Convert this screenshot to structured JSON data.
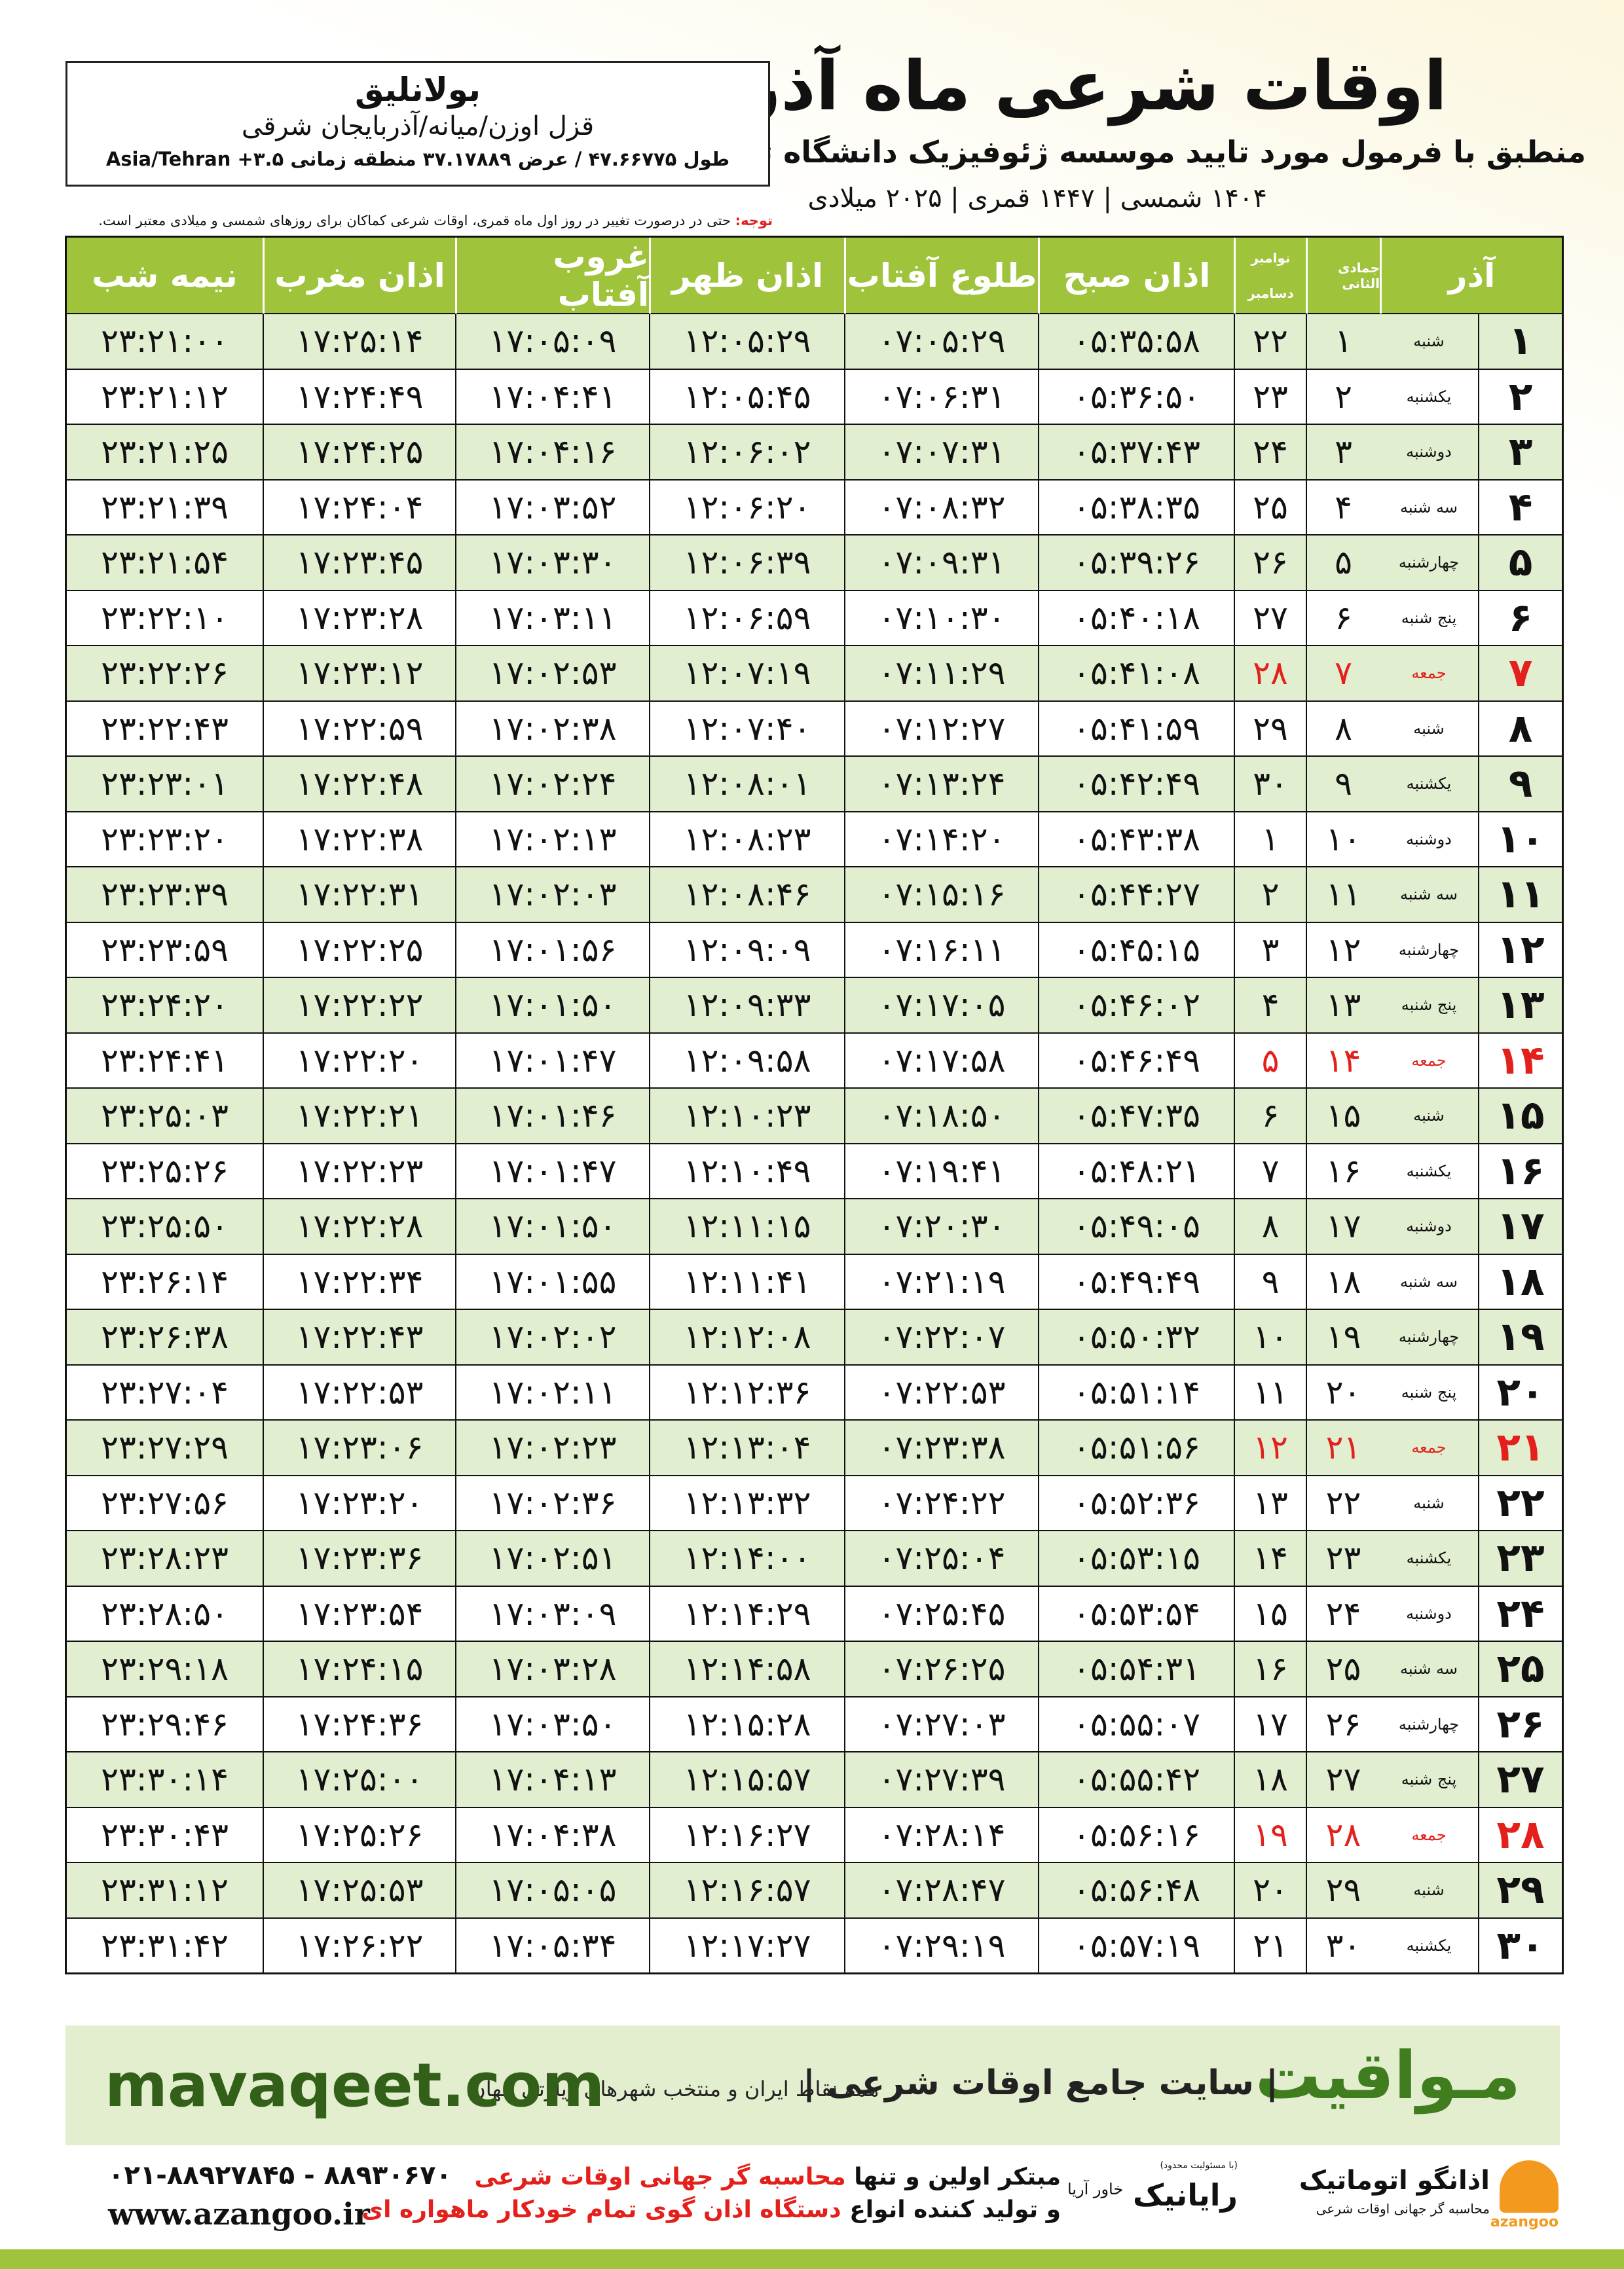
{
  "header": {
    "title": "اوقات شرعی ماه آذر",
    "subtitle": "منطبق با فرمول مورد تایید موسسه ژئوفیزیک دانشگاه تهران",
    "dates": "۱۴۰۴ شمسی | ۱۴۴۷ قمری | ۲۰۲۵ میلادی"
  },
  "location": {
    "city": "بولانلیق",
    "region": "قزل اوزن/میانه/آذربایجان شرقی",
    "coords": "طول ۴۷.۶۶۷۷۵ / عرض ۳۷.۱۷۸۸۹ منطقه زمانی ۳.۵+ Asia/Tehran"
  },
  "note": {
    "label": "توجه:",
    "text": "حتی در درصورت تغییر در روز اول ماه قمری، اوقات شرعی کماکان برای روزهای شمسی و میلادی معتبر است."
  },
  "table": {
    "columns": [
      "آذر",
      "جمادی الثانی",
      "نوامبر",
      "دسامبر",
      "اذان صبح",
      "طلوع آفتاب",
      "اذان ظهر",
      "غروب آفتاب",
      "اذان مغرب",
      "نیمه شب"
    ],
    "rows": [
      {
        "color": "#111111",
        "cells": [
          "۱",
          "شنبه",
          "۱",
          "۲۲",
          "۰۵:۳۵:۵۸",
          "۰۷:۰۵:۲۹",
          "۱۲:۰۵:۲۹",
          "۱۷:۰۵:۰۹",
          "۱۷:۲۵:۱۴",
          "۲۳:۲۱:۰۰"
        ]
      },
      {
        "color": "#111111",
        "cells": [
          "۲",
          "یکشنبه",
          "۲",
          "۲۳",
          "۰۵:۳۶:۵۰",
          "۰۷:۰۶:۳۱",
          "۱۲:۰۵:۴۵",
          "۱۷:۰۴:۴۱",
          "۱۷:۲۴:۴۹",
          "۲۳:۲۱:۱۲"
        ]
      },
      {
        "color": "#111111",
        "cells": [
          "۳",
          "دوشنبه",
          "۳",
          "۲۴",
          "۰۵:۳۷:۴۳",
          "۰۷:۰۷:۳۱",
          "۱۲:۰۶:۰۲",
          "۱۷:۰۴:۱۶",
          "۱۷:۲۴:۲۵",
          "۲۳:۲۱:۲۵"
        ]
      },
      {
        "color": "#111111",
        "cells": [
          "۴",
          "سه شنبه",
          "۴",
          "۲۵",
          "۰۵:۳۸:۳۵",
          "۰۷:۰۸:۳۲",
          "۱۲:۰۶:۲۰",
          "۱۷:۰۳:۵۲",
          "۱۷:۲۴:۰۴",
          "۲۳:۲۱:۳۹"
        ]
      },
      {
        "color": "#111111",
        "cells": [
          "۵",
          "چهارشنبه",
          "۵",
          "۲۶",
          "۰۵:۳۹:۲۶",
          "۰۷:۰۹:۳۱",
          "۱۲:۰۶:۳۹",
          "۱۷:۰۳:۳۰",
          "۱۷:۲۳:۴۵",
          "۲۳:۲۱:۵۴"
        ]
      },
      {
        "color": "#111111",
        "cells": [
          "۶",
          "پنج شنبه",
          "۶",
          "۲۷",
          "۰۵:۴۰:۱۸",
          "۰۷:۱۰:۳۰",
          "۱۲:۰۶:۵۹",
          "۱۷:۰۳:۱۱",
          "۱۷:۲۳:۲۸",
          "۲۳:۲۲:۱۰"
        ]
      },
      {
        "color": "#e3201b",
        "cells": [
          "۷",
          "جمعه",
          "۷",
          "۲۸",
          "۰۵:۴۱:۰۸",
          "۰۷:۱۱:۲۹",
          "۱۲:۰۷:۱۹",
          "۱۷:۰۲:۵۳",
          "۱۷:۲۳:۱۲",
          "۲۳:۲۲:۲۶"
        ]
      },
      {
        "color": "#111111",
        "cells": [
          "۸",
          "شنبه",
          "۸",
          "۲۹",
          "۰۵:۴۱:۵۹",
          "۰۷:۱۲:۲۷",
          "۱۲:۰۷:۴۰",
          "۱۷:۰۲:۳۸",
          "۱۷:۲۲:۵۹",
          "۲۳:۲۲:۴۳"
        ]
      },
      {
        "color": "#111111",
        "cells": [
          "۹",
          "یکشنبه",
          "۹",
          "۳۰",
          "۰۵:۴۲:۴۹",
          "۰۷:۱۳:۲۴",
          "۱۲:۰۸:۰۱",
          "۱۷:۰۲:۲۴",
          "۱۷:۲۲:۴۸",
          "۲۳:۲۳:۰۱"
        ]
      },
      {
        "color": "#111111",
        "cells": [
          "۱۰",
          "دوشنبه",
          "۱۰",
          "۱",
          "۰۵:۴۳:۳۸",
          "۰۷:۱۴:۲۰",
          "۱۲:۰۸:۲۳",
          "۱۷:۰۲:۱۳",
          "۱۷:۲۲:۳۸",
          "۲۳:۲۳:۲۰"
        ]
      },
      {
        "color": "#111111",
        "cells": [
          "۱۱",
          "سه شنبه",
          "۱۱",
          "۲",
          "۰۵:۴۴:۲۷",
          "۰۷:۱۵:۱۶",
          "۱۲:۰۸:۴۶",
          "۱۷:۰۲:۰۳",
          "۱۷:۲۲:۳۱",
          "۲۳:۲۳:۳۹"
        ]
      },
      {
        "color": "#111111",
        "cells": [
          "۱۲",
          "چهارشنبه",
          "۱۲",
          "۳",
          "۰۵:۴۵:۱۵",
          "۰۷:۱۶:۱۱",
          "۱۲:۰۹:۰۹",
          "۱۷:۰۱:۵۶",
          "۱۷:۲۲:۲۵",
          "۲۳:۲۳:۵۹"
        ]
      },
      {
        "color": "#111111",
        "cells": [
          "۱۳",
          "پنج شنبه",
          "۱۳",
          "۴",
          "۰۵:۴۶:۰۲",
          "۰۷:۱۷:۰۵",
          "۱۲:۰۹:۳۳",
          "۱۷:۰۱:۵۰",
          "۱۷:۲۲:۲۲",
          "۲۳:۲۴:۲۰"
        ]
      },
      {
        "color": "#e3201b",
        "cells": [
          "۱۴",
          "جمعه",
          "۱۴",
          "۵",
          "۰۵:۴۶:۴۹",
          "۰۷:۱۷:۵۸",
          "۱۲:۰۹:۵۸",
          "۱۷:۰۱:۴۷",
          "۱۷:۲۲:۲۰",
          "۲۳:۲۴:۴۱"
        ]
      },
      {
        "color": "#111111",
        "cells": [
          "۱۵",
          "شنبه",
          "۱۵",
          "۶",
          "۰۵:۴۷:۳۵",
          "۰۷:۱۸:۵۰",
          "۱۲:۱۰:۲۳",
          "۱۷:۰۱:۴۶",
          "۱۷:۲۲:۲۱",
          "۲۳:۲۵:۰۳"
        ]
      },
      {
        "color": "#111111",
        "cells": [
          "۱۶",
          "یکشنبه",
          "۱۶",
          "۷",
          "۰۵:۴۸:۲۱",
          "۰۷:۱۹:۴۱",
          "۱۲:۱۰:۴۹",
          "۱۷:۰۱:۴۷",
          "۱۷:۲۲:۲۳",
          "۲۳:۲۵:۲۶"
        ]
      },
      {
        "color": "#111111",
        "cells": [
          "۱۷",
          "دوشنبه",
          "۱۷",
          "۸",
          "۰۵:۴۹:۰۵",
          "۰۷:۲۰:۳۰",
          "۱۲:۱۱:۱۵",
          "۱۷:۰۱:۵۰",
          "۱۷:۲۲:۲۸",
          "۲۳:۲۵:۵۰"
        ]
      },
      {
        "color": "#111111",
        "cells": [
          "۱۸",
          "سه شنبه",
          "۱۸",
          "۹",
          "۰۵:۴۹:۴۹",
          "۰۷:۲۱:۱۹",
          "۱۲:۱۱:۴۱",
          "۱۷:۰۱:۵۵",
          "۱۷:۲۲:۳۴",
          "۲۳:۲۶:۱۴"
        ]
      },
      {
        "color": "#111111",
        "cells": [
          "۱۹",
          "چهارشنبه",
          "۱۹",
          "۱۰",
          "۰۵:۵۰:۳۲",
          "۰۷:۲۲:۰۷",
          "۱۲:۱۲:۰۸",
          "۱۷:۰۲:۰۲",
          "۱۷:۲۲:۴۳",
          "۲۳:۲۶:۳۸"
        ]
      },
      {
        "color": "#111111",
        "cells": [
          "۲۰",
          "پنج شنبه",
          "۲۰",
          "۱۱",
          "۰۵:۵۱:۱۴",
          "۰۷:۲۲:۵۳",
          "۱۲:۱۲:۳۶",
          "۱۷:۰۲:۱۱",
          "۱۷:۲۲:۵۳",
          "۲۳:۲۷:۰۴"
        ]
      },
      {
        "color": "#e3201b",
        "cells": [
          "۲۱",
          "جمعه",
          "۲۱",
          "۱۲",
          "۰۵:۵۱:۵۶",
          "۰۷:۲۳:۳۸",
          "۱۲:۱۳:۰۴",
          "۱۷:۰۲:۲۳",
          "۱۷:۲۳:۰۶",
          "۲۳:۲۷:۲۹"
        ]
      },
      {
        "color": "#111111",
        "cells": [
          "۲۲",
          "شنبه",
          "۲۲",
          "۱۳",
          "۰۵:۵۲:۳۶",
          "۰۷:۲۴:۲۲",
          "۱۲:۱۳:۳۲",
          "۱۷:۰۲:۳۶",
          "۱۷:۲۳:۲۰",
          "۲۳:۲۷:۵۶"
        ]
      },
      {
        "color": "#111111",
        "cells": [
          "۲۳",
          "یکشنبه",
          "۲۳",
          "۱۴",
          "۰۵:۵۳:۱۵",
          "۰۷:۲۵:۰۴",
          "۱۲:۱۴:۰۰",
          "۱۷:۰۲:۵۱",
          "۱۷:۲۳:۳۶",
          "۲۳:۲۸:۲۳"
        ]
      },
      {
        "color": "#111111",
        "cells": [
          "۲۴",
          "دوشنبه",
          "۲۴",
          "۱۵",
          "۰۵:۵۳:۵۴",
          "۰۷:۲۵:۴۵",
          "۱۲:۱۴:۲۹",
          "۱۷:۰۳:۰۹",
          "۱۷:۲۳:۵۴",
          "۲۳:۲۸:۵۰"
        ]
      },
      {
        "color": "#111111",
        "cells": [
          "۲۵",
          "سه شنبه",
          "۲۵",
          "۱۶",
          "۰۵:۵۴:۳۱",
          "۰۷:۲۶:۲۵",
          "۱۲:۱۴:۵۸",
          "۱۷:۰۳:۲۸",
          "۱۷:۲۴:۱۵",
          "۲۳:۲۹:۱۸"
        ]
      },
      {
        "color": "#111111",
        "cells": [
          "۲۶",
          "چهارشنبه",
          "۲۶",
          "۱۷",
          "۰۵:۵۵:۰۷",
          "۰۷:۲۷:۰۳",
          "۱۲:۱۵:۲۸",
          "۱۷:۰۳:۵۰",
          "۱۷:۲۴:۳۶",
          "۲۳:۲۹:۴۶"
        ]
      },
      {
        "color": "#111111",
        "cells": [
          "۲۷",
          "پنج شنبه",
          "۲۷",
          "۱۸",
          "۰۵:۵۵:۴۲",
          "۰۷:۲۷:۳۹",
          "۱۲:۱۵:۵۷",
          "۱۷:۰۴:۱۳",
          "۱۷:۲۵:۰۰",
          "۲۳:۳۰:۱۴"
        ]
      },
      {
        "color": "#e3201b",
        "cells": [
          "۲۸",
          "جمعه",
          "۲۸",
          "۱۹",
          "۰۵:۵۶:۱۶",
          "۰۷:۲۸:۱۴",
          "۱۲:۱۶:۲۷",
          "۱۷:۰۴:۳۸",
          "۱۷:۲۵:۲۶",
          "۲۳:۳۰:۴۳"
        ]
      },
      {
        "color": "#111111",
        "cells": [
          "۲۹",
          "شنبه",
          "۲۹",
          "۲۰",
          "۰۵:۵۶:۴۸",
          "۰۷:۲۸:۴۷",
          "۱۲:۱۶:۵۷",
          "۱۷:۰۵:۰۵",
          "۱۷:۲۵:۵۳",
          "۲۳:۳۱:۱۲"
        ]
      },
      {
        "color": "#111111",
        "cells": [
          "۳۰",
          "یکشنبه",
          "۳۰",
          "۲۱",
          "۰۵:۵۷:۱۹",
          "۰۷:۲۹:۱۹",
          "۱۲:۱۷:۲۷",
          "۱۷:۰۵:۳۴",
          "۱۷:۲۶:۲۲",
          "۲۳:۳۱:۴۲"
        ]
      }
    ]
  },
  "banner": {
    "brand": "مـواقیت",
    "slogan": "| سایت جامع اوقات شرعی |",
    "subslogan": "همه نقاط ایران و منتخب شهرهای زیارتی جهان",
    "website": "mavaqeet.com"
  },
  "footer": {
    "line1": [
      "مبتکر اولین و تنها ",
      "محاسبه گر جهانی اوقات شرعی"
    ],
    "line2": [
      "و تولید کننده انواع ",
      "دستگاه اذان گوی تمام خودکار ماهواره ای"
    ],
    "phone": "۰۲۱-۸۸۹۲۷۸۴۵ - ۸۸۹۳۰۶۷۰",
    "website": "www.azangoo.ir",
    "logos": [
      "رایانیک",
      "خاور آریا",
      "اذانگو اتوماتیک",
      "azangoo",
      "محاسبه گر جهانی اوقات شرعی",
      "(با مسئولیت محدود)"
    ]
  }
}
